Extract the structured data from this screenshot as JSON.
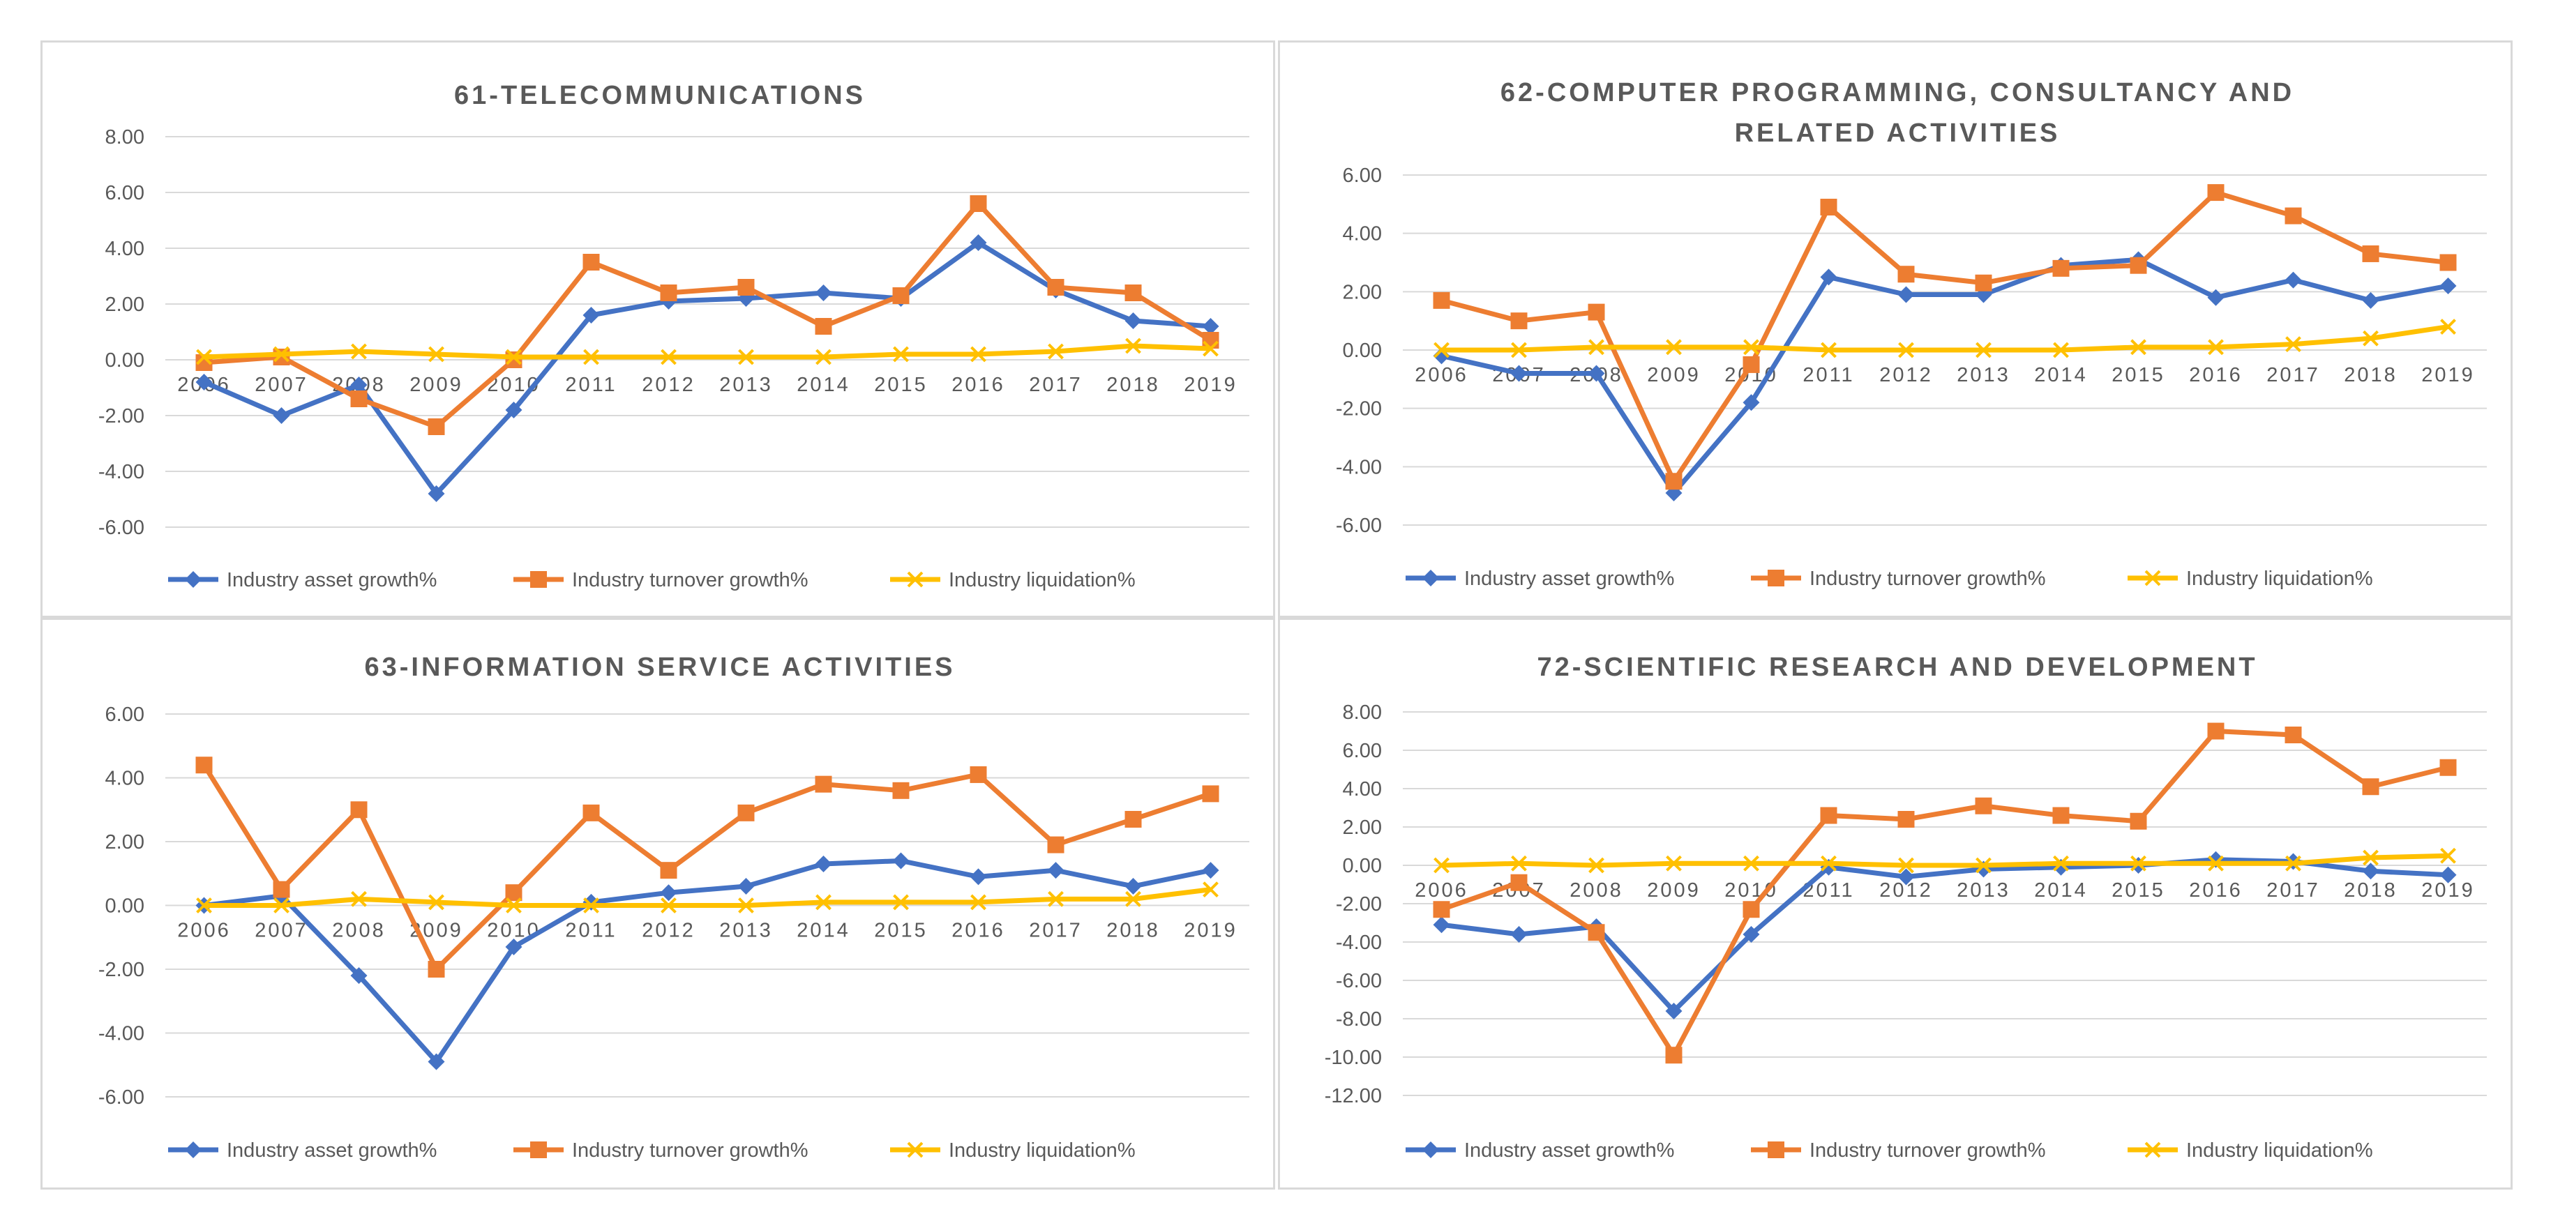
{
  "charts_layout": "2x2 grid",
  "chart_data": [
    {
      "type": "line",
      "title": [
        "61-TELECOMMUNICATIONS"
      ],
      "xlabel": "",
      "ylabel": "",
      "categories": [
        "2006",
        "2007",
        "2008",
        "2009",
        "2010",
        "2011",
        "2012",
        "2013",
        "2014",
        "2015",
        "2016",
        "2017",
        "2018",
        "2019"
      ],
      "ylim": [
        -6,
        8
      ],
      "ytick_step": 2,
      "yticks": [
        "8.00",
        "6.00",
        "4.00",
        "2.00",
        "0.00",
        "-2.00",
        "-4.00",
        "-6.00"
      ],
      "grid": true,
      "legend_position": "bottom",
      "series": [
        {
          "name": "Industry asset growth%",
          "color": "#4472C4",
          "marker": "diamond",
          "values": [
            -0.8,
            -2.0,
            -0.9,
            -4.8,
            -1.8,
            1.6,
            2.1,
            2.2,
            2.4,
            2.2,
            4.2,
            2.5,
            1.4,
            1.2
          ]
        },
        {
          "name": "Industry turnover growth%",
          "color": "#ED7D31",
          "marker": "square",
          "values": [
            -0.1,
            0.1,
            -1.4,
            -2.4,
            0.0,
            3.5,
            2.4,
            2.6,
            1.2,
            2.3,
            5.6,
            2.6,
            2.4,
            0.7
          ]
        },
        {
          "name": "Industry liquidation%",
          "color": "#FFC000",
          "marker": "x",
          "values": [
            0.1,
            0.2,
            0.3,
            0.2,
            0.1,
            0.1,
            0.1,
            0.1,
            0.1,
            0.2,
            0.2,
            0.3,
            0.5,
            0.4
          ]
        }
      ]
    },
    {
      "type": "line",
      "title": [
        "62-COMPUTER PROGRAMMING, CONSULTANCY AND",
        "RELATED ACTIVITIES"
      ],
      "xlabel": "",
      "ylabel": "",
      "categories": [
        "2006",
        "2007",
        "2008",
        "2009",
        "2010",
        "2011",
        "2012",
        "2013",
        "2014",
        "2015",
        "2016",
        "2017",
        "2018",
        "2019"
      ],
      "ylim": [
        -6,
        6
      ],
      "ytick_step": 2,
      "yticks": [
        "6.00",
        "4.00",
        "2.00",
        "0.00",
        "-2.00",
        "-4.00",
        "-6.00"
      ],
      "grid": true,
      "legend_position": "bottom",
      "series": [
        {
          "name": "Industry asset growth%",
          "color": "#4472C4",
          "marker": "diamond",
          "values": [
            -0.2,
            -0.8,
            -0.8,
            -4.9,
            -1.8,
            2.5,
            1.9,
            1.9,
            2.9,
            3.1,
            1.8,
            2.4,
            1.7,
            2.2
          ]
        },
        {
          "name": "Industry turnover growth%",
          "color": "#ED7D31",
          "marker": "square",
          "values": [
            1.7,
            1.0,
            1.3,
            -4.5,
            -0.5,
            4.9,
            2.6,
            2.3,
            2.8,
            2.9,
            5.4,
            4.6,
            3.3,
            3.0
          ]
        },
        {
          "name": "Industry liquidation%",
          "color": "#FFC000",
          "marker": "x",
          "values": [
            0.0,
            0.0,
            0.1,
            0.1,
            0.1,
            0.0,
            0.0,
            0.0,
            0.0,
            0.1,
            0.1,
            0.2,
            0.4,
            0.8
          ]
        }
      ]
    },
    {
      "type": "line",
      "title": [
        "63-INFORMATION SERVICE ACTIVITIES"
      ],
      "xlabel": "",
      "ylabel": "",
      "categories": [
        "2006",
        "2007",
        "2008",
        "2009",
        "2010",
        "2011",
        "2012",
        "2013",
        "2014",
        "2015",
        "2016",
        "2017",
        "2018",
        "2019"
      ],
      "ylim": [
        -6,
        6
      ],
      "ytick_step": 2,
      "yticks": [
        "6.00",
        "4.00",
        "2.00",
        "0.00",
        "-2.00",
        "-4.00",
        "-6.00"
      ],
      "grid": true,
      "legend_position": "bottom",
      "series": [
        {
          "name": "Industry asset growth%",
          "color": "#4472C4",
          "marker": "diamond",
          "values": [
            0.0,
            0.3,
            -2.2,
            -4.9,
            -1.3,
            0.1,
            0.4,
            0.6,
            1.3,
            1.4,
            0.9,
            1.1,
            0.6,
            1.1
          ]
        },
        {
          "name": "Industry turnover growth%",
          "color": "#ED7D31",
          "marker": "square",
          "values": [
            4.4,
            0.5,
            3.0,
            -2.0,
            0.4,
            2.9,
            1.1,
            2.9,
            3.8,
            3.6,
            4.1,
            1.9,
            2.7,
            3.5
          ]
        },
        {
          "name": "Industry liquidation%",
          "color": "#FFC000",
          "marker": "x",
          "values": [
            0.0,
            0.0,
            0.2,
            0.1,
            0.0,
            0.0,
            0.0,
            0.0,
            0.1,
            0.1,
            0.1,
            0.2,
            0.2,
            0.5
          ]
        }
      ]
    },
    {
      "type": "line",
      "title": [
        "72-SCIENTIFIC RESEARCH AND DEVELOPMENT"
      ],
      "xlabel": "",
      "ylabel": "",
      "categories": [
        "2006",
        "2007",
        "2008",
        "2009",
        "2010",
        "2011",
        "2012",
        "2013",
        "2014",
        "2015",
        "2016",
        "2017",
        "2018",
        "2019"
      ],
      "ylim": [
        -12,
        8
      ],
      "ytick_step": 2,
      "yticks": [
        "8.00",
        "6.00",
        "4.00",
        "2.00",
        "0.00",
        "-2.00",
        "-4.00",
        "-6.00",
        "-8.00",
        "-10.00",
        "-12.00"
      ],
      "grid": true,
      "legend_position": "bottom",
      "series": [
        {
          "name": "Industry asset growth%",
          "color": "#4472C4",
          "marker": "diamond",
          "values": [
            -3.1,
            -3.6,
            -3.2,
            -7.6,
            -3.6,
            -0.1,
            -0.6,
            -0.2,
            -0.1,
            0.0,
            0.3,
            0.2,
            -0.3,
            -0.5
          ]
        },
        {
          "name": "Industry turnover growth%",
          "color": "#ED7D31",
          "marker": "square",
          "values": [
            -2.3,
            -0.9,
            -3.5,
            -9.9,
            -2.3,
            2.6,
            2.4,
            3.1,
            2.6,
            2.3,
            7.0,
            6.8,
            4.1,
            5.1
          ]
        },
        {
          "name": "Industry liquidation%",
          "color": "#FFC000",
          "marker": "x",
          "values": [
            0.0,
            0.1,
            0.0,
            0.1,
            0.1,
            0.1,
            0.0,
            0.0,
            0.1,
            0.1,
            0.1,
            0.1,
            0.4,
            0.5
          ]
        }
      ]
    }
  ]
}
